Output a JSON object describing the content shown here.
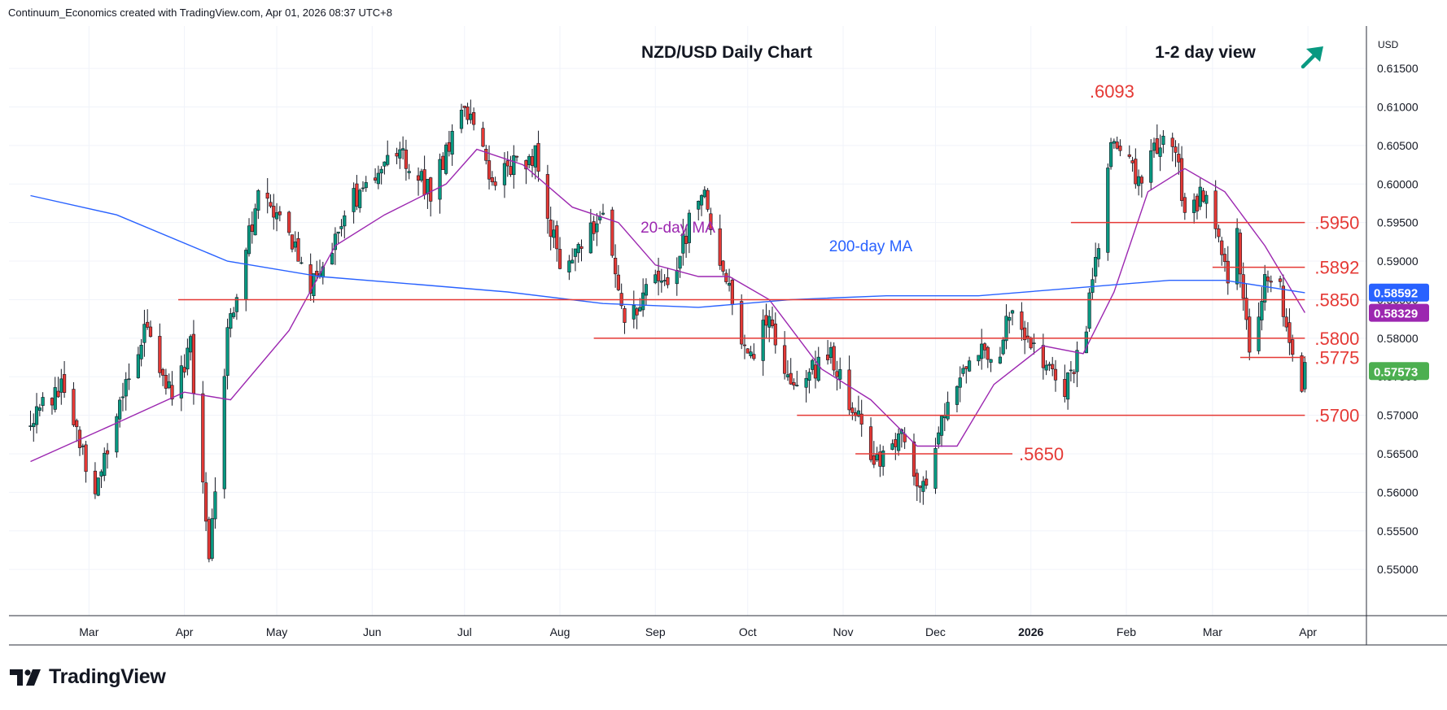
{
  "header": {
    "credit": "Continuum_Economics created with TradingView.com, Apr 01, 2026 08:37 UTC+8"
  },
  "footer": {
    "brand": "TradingView",
    "logo_icon": "tradingview-logo-icon"
  },
  "chart_data": {
    "type": "candlestick",
    "title": "NZD/USD Daily Chart",
    "view_label": "1-2 day view",
    "view_icon": "arrow-up-right-icon",
    "currency_label": "USD",
    "y_ticks": [
      "0.55000",
      "0.55500",
      "0.56000",
      "0.56500",
      "0.57000",
      "0.57500",
      "0.58000",
      "0.58500",
      "0.59000",
      "0.59500",
      "0.60000",
      "0.60500",
      "0.61000",
      "0.61500"
    ],
    "ylim": [
      0.544,
      0.6205
    ],
    "x_ticks": [
      "Mar",
      "Apr",
      "May",
      "Jun",
      "Jul",
      "Aug",
      "Sep",
      "Oct",
      "Nov",
      "Dec",
      "2026",
      "Feb",
      "Mar",
      "Apr"
    ],
    "price_path": [
      [
        "2025-02-10",
        0.569
      ],
      [
        "2025-02-20",
        0.574
      ],
      [
        "2025-03-03",
        0.56
      ],
      [
        "2025-03-12",
        0.573
      ],
      [
        "2025-03-20",
        0.582
      ],
      [
        "2025-03-28",
        0.572
      ],
      [
        "2025-04-03",
        0.579
      ],
      [
        "2025-04-09",
        0.551
      ],
      [
        "2025-04-15",
        0.58
      ],
      [
        "2025-04-25",
        0.599
      ],
      [
        "2025-05-05",
        0.594
      ],
      [
        "2025-05-12",
        0.587
      ],
      [
        "2025-05-26",
        0.598
      ],
      [
        "2025-06-10",
        0.604
      ],
      [
        "2025-06-20",
        0.599
      ],
      [
        "2025-07-01",
        0.61
      ],
      [
        "2025-07-10",
        0.601
      ],
      [
        "2025-07-24",
        0.604
      ],
      [
        "2025-08-01",
        0.589
      ],
      [
        "2025-08-15",
        0.596
      ],
      [
        "2025-08-22",
        0.582
      ],
      [
        "2025-09-01",
        0.588
      ],
      [
        "2025-09-05",
        0.586
      ],
      [
        "2025-09-16",
        0.6
      ],
      [
        "2025-09-22",
        0.59
      ],
      [
        "2025-10-01",
        0.577
      ],
      [
        "2025-10-08",
        0.583
      ],
      [
        "2025-10-15",
        0.573
      ],
      [
        "2025-10-28",
        0.578
      ],
      [
        "2025-11-05",
        0.57
      ],
      [
        "2025-11-12",
        0.564
      ],
      [
        "2025-11-20",
        0.568
      ],
      [
        "2025-11-27",
        0.56
      ],
      [
        "2025-12-05",
        0.573
      ],
      [
        "2025-12-12",
        0.577
      ],
      [
        "2025-12-22",
        0.579
      ],
      [
        "2025-12-26",
        0.584
      ],
      [
        "2026-01-05",
        0.576
      ],
      [
        "2026-01-12",
        0.573
      ],
      [
        "2026-01-19",
        0.582
      ],
      [
        "2026-01-28",
        0.607
      ],
      [
        "2026-02-05",
        0.6
      ],
      [
        "2026-02-11",
        0.605
      ],
      [
        "2026-02-17",
        0.605
      ],
      [
        "2026-02-20",
        0.595
      ],
      [
        "2026-02-26",
        0.599
      ],
      [
        "2026-03-03",
        0.592
      ],
      [
        "2026-03-06",
        0.588
      ],
      [
        "2026-03-09",
        0.593
      ],
      [
        "2026-03-13",
        0.579
      ],
      [
        "2026-03-18",
        0.587
      ],
      [
        "2026-03-23",
        0.586
      ],
      [
        "2026-03-26",
        0.578
      ],
      [
        "2026-03-30",
        0.572
      ],
      [
        "2026-03-31",
        0.5757
      ]
    ],
    "moving_averages": [
      {
        "name": "20-day MA",
        "color": "#9c27b0",
        "points": [
          [
            "2025-02-10",
            0.564
          ],
          [
            "2025-03-10",
            0.569
          ],
          [
            "2025-04-01",
            0.573
          ],
          [
            "2025-04-16",
            0.572
          ],
          [
            "2025-05-05",
            0.581
          ],
          [
            "2025-05-20",
            0.592
          ],
          [
            "2025-06-05",
            0.596
          ],
          [
            "2025-06-25",
            0.6
          ],
          [
            "2025-07-05",
            0.6045
          ],
          [
            "2025-07-20",
            0.6025
          ],
          [
            "2025-08-05",
            0.597
          ],
          [
            "2025-08-20",
            0.595
          ],
          [
            "2025-09-01",
            0.5895
          ],
          [
            "2025-09-15",
            0.588
          ],
          [
            "2025-09-25",
            0.588
          ],
          [
            "2025-10-08",
            0.585
          ],
          [
            "2025-10-25",
            0.576
          ],
          [
            "2025-11-10",
            0.572
          ],
          [
            "2025-11-25",
            0.566
          ],
          [
            "2025-12-08",
            0.566
          ],
          [
            "2025-12-20",
            0.574
          ],
          [
            "2026-01-05",
            0.579
          ],
          [
            "2026-01-18",
            0.578
          ],
          [
            "2026-01-28",
            0.586
          ],
          [
            "2026-02-08",
            0.599
          ],
          [
            "2026-02-20",
            0.602
          ],
          [
            "2026-03-05",
            0.599
          ],
          [
            "2026-03-18",
            0.592
          ],
          [
            "2026-03-31",
            0.5833
          ]
        ]
      },
      {
        "name": "200-day MA",
        "color": "#2962ff",
        "points": [
          [
            "2025-02-10",
            0.5985
          ],
          [
            "2025-03-10",
            0.596
          ],
          [
            "2025-04-15",
            0.59
          ],
          [
            "2025-05-15",
            0.588
          ],
          [
            "2025-06-15",
            0.587
          ],
          [
            "2025-07-15",
            0.586
          ],
          [
            "2025-08-15",
            0.5845
          ],
          [
            "2025-09-15",
            0.584
          ],
          [
            "2025-10-15",
            0.585
          ],
          [
            "2025-11-15",
            0.5855
          ],
          [
            "2025-12-15",
            0.5855
          ],
          [
            "2026-01-15",
            0.5865
          ],
          [
            "2026-02-15",
            0.5875
          ],
          [
            "2026-03-05",
            0.5875
          ],
          [
            "2026-03-31",
            0.5859
          ]
        ]
      }
    ],
    "levels": [
      {
        "label": ".6093",
        "value": 0.6093,
        "line": false,
        "from": "2026-01-28",
        "to": "2026-01-28"
      },
      {
        "label": ".5950",
        "value": 0.595,
        "line": true,
        "from": "2026-01-14",
        "to": "2026-03-31"
      },
      {
        "label": ".5892",
        "value": 0.5892,
        "line": true,
        "from": "2026-03-01",
        "to": "2026-03-31"
      },
      {
        "label": ".5850",
        "value": 0.585,
        "line": true,
        "from": "2025-03-30",
        "to": "2026-03-31"
      },
      {
        "label": ".5800",
        "value": 0.58,
        "line": true,
        "from": "2025-08-12",
        "to": "2026-03-31"
      },
      {
        "label": ".5775",
        "value": 0.5775,
        "line": true,
        "from": "2026-03-10",
        "to": "2026-03-31"
      },
      {
        "label": ".5700",
        "value": 0.57,
        "line": true,
        "from": "2025-10-17",
        "to": "2026-03-31"
      },
      {
        "label": ".5650",
        "value": 0.565,
        "line": true,
        "from": "2025-11-05",
        "to": "2025-12-26"
      }
    ],
    "price_labels": [
      {
        "value": "0.58592",
        "color": "#2962ff"
      },
      {
        "value": "0.58329",
        "color": "#9c27b0"
      },
      {
        "value": "0.57573",
        "color": "#4caf50"
      }
    ],
    "colors": {
      "up": "#089981",
      "down": "#e53935",
      "level": "#e53935",
      "level_text": "#e53935",
      "grid": "#f0f3fa",
      "view_arrow": "#089981"
    }
  }
}
